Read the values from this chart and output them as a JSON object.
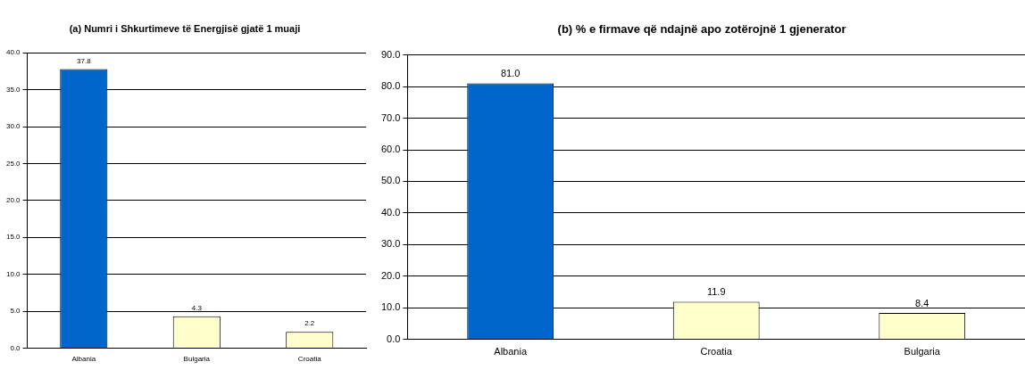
{
  "chart_data": [
    {
      "type": "bar",
      "title": "(a) Numri i Shkurtimeve të Energjisë gjatë 1 muaji",
      "categories": [
        "Albania",
        "Bulgaria",
        "Croatia"
      ],
      "values": [
        37.8,
        4.3,
        2.2
      ],
      "colors": [
        "#0066cc",
        "#ffffcc",
        "#ffffcc"
      ],
      "value_labels": [
        "37.8",
        "4.3",
        "2.2"
      ],
      "ylim": [
        0,
        40
      ],
      "yticks": [
        {
          "value": 0,
          "label": "0.0"
        },
        {
          "value": 5,
          "label": "5.0"
        },
        {
          "value": 10,
          "label": "10.0"
        },
        {
          "value": 15,
          "label": "15.0"
        },
        {
          "value": 20,
          "label": "20.0"
        },
        {
          "value": 25,
          "label": "25.0"
        },
        {
          "value": 30,
          "label": "30.0"
        },
        {
          "value": 35,
          "label": "35.0"
        },
        {
          "value": 40,
          "label": "40.0"
        }
      ],
      "grid": "y",
      "legend": false
    },
    {
      "type": "bar",
      "title": "(b) % e firmave që ndajnë apo zotërojnë 1 gjenerator",
      "categories": [
        "Albania",
        "Croatia",
        "Bulgaria"
      ],
      "values": [
        81.0,
        11.9,
        8.4
      ],
      "colors": [
        "#0066cc",
        "#ffffcc",
        "#ffffcc"
      ],
      "value_labels": [
        "81.0",
        "11.9",
        "8.4"
      ],
      "ylim": [
        0,
        90
      ],
      "yticks": [
        {
          "value": 0,
          "label": "0.0"
        },
        {
          "value": 10,
          "label": "10.0"
        },
        {
          "value": 20,
          "label": "20.0"
        },
        {
          "value": 30,
          "label": "30.0"
        },
        {
          "value": 40,
          "label": "40.0"
        },
        {
          "value": 50,
          "label": "50.0"
        },
        {
          "value": 60,
          "label": "60.0"
        },
        {
          "value": 70,
          "label": "70.0"
        },
        {
          "value": 80,
          "label": "80.0"
        },
        {
          "value": 90,
          "label": "90.0"
        }
      ],
      "grid": "y",
      "legend": false
    }
  ]
}
